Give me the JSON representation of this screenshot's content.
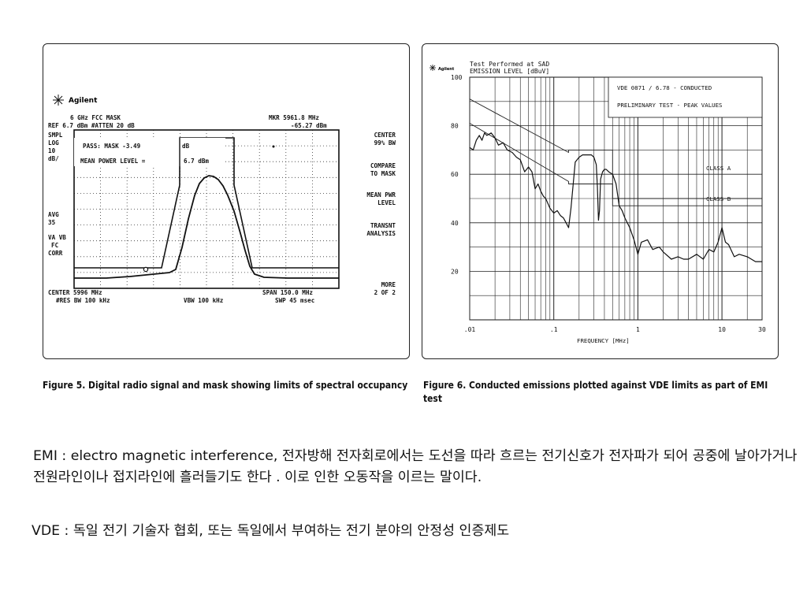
{
  "figure5": {
    "brand": "Agilent",
    "header_left_1": "6 GHz FCC MASK",
    "header_left_2": "REF 6.7 dBm   #ATTEN 20 dB",
    "header_right_1": "MKR 5961.8 MHz",
    "header_right_2": "-65.27 dBm",
    "side_labels": [
      "SMPL",
      "LOG",
      "10",
      "dB/"
    ],
    "avg_labels": [
      "AVG",
      "35"
    ],
    "corr_labels": [
      "VA VB",
      "FC",
      "CORR"
    ],
    "pass_text": "PASS: MASK -3.49",
    "pass_unit": "dB",
    "mean_text": "MEAN POWER LEVEL =",
    "mean_value": "6.7 dBm",
    "bottom_left_1": "CENTER 5996 MHz",
    "bottom_left_2": "#RES BW 100 kHz",
    "bottom_mid": "VBW 100 kHz",
    "bottom_right_1": "SPAN 150.0 MHz",
    "bottom_right_2": "SWP 45 msec",
    "softkeys": [
      [
        "CENTER",
        "99% BW"
      ],
      [
        "COMPARE",
        "TO MASK"
      ],
      [
        "MEAN PWR",
        "LEVEL"
      ],
      [
        "TRANSNT",
        "ANALYSIS"
      ],
      [
        "MORE",
        "2 OF 2"
      ]
    ]
  },
  "figure6": {
    "brand": "Agilent",
    "title_1": "Test Performed at SAD",
    "title_2": "EMISSION LEVEL [dBuV]",
    "legend_1": "VDE 0871 / 6.78 - CONDUCTED",
    "legend_2": "PRELIMINARY TEST - PEAK VALUES",
    "class_a": "CLASS A",
    "class_b": "CLASS B",
    "xlabel": "FREQUENCY [MHz]"
  },
  "chart_data": {
    "type": "line",
    "title": "Test Performed at SAD",
    "ylabel": "EMISSION LEVEL [dBuV]",
    "xlabel": "FREQUENCY [MHz]",
    "xscale": "log",
    "xlim": [
      0.01,
      30
    ],
    "ylim": [
      0,
      100
    ],
    "xticks": [
      0.01,
      0.1,
      1,
      10,
      30
    ],
    "xtick_labels": [
      ".01",
      ".1",
      "1",
      "10",
      "30"
    ],
    "yticks": [
      20,
      40,
      60,
      80,
      100
    ],
    "ytick_labels": [
      "20",
      "40",
      "60",
      "80",
      "100"
    ],
    "grid": true,
    "series": [
      {
        "name": "CLASS A",
        "color": "#222222",
        "x": [
          0.01,
          0.15,
          0.15,
          0.5,
          0.5,
          30
        ],
        "y": [
          91,
          69,
          70,
          70,
          50,
          50
        ]
      },
      {
        "name": "CLASS B",
        "color": "#222222",
        "x": [
          0.01,
          0.15,
          0.15,
          0.5,
          0.5,
          30
        ],
        "y": [
          81,
          57,
          56,
          56,
          47,
          47
        ]
      },
      {
        "name": "",
        "color": "#111111",
        "x": [
          0.01,
          0.011,
          0.012,
          0.013,
          0.014,
          0.015,
          0.016,
          0.018,
          0.02,
          0.022,
          0.025,
          0.028,
          0.032,
          0.036,
          0.04,
          0.045,
          0.05,
          0.055,
          0.06,
          0.065,
          0.07,
          0.075,
          0.08,
          0.085,
          0.09,
          0.1,
          0.11,
          0.12,
          0.13,
          0.14,
          0.15,
          0.16,
          0.18,
          0.2,
          0.22,
          0.25,
          0.28,
          0.3,
          0.32,
          0.33,
          0.34,
          0.35,
          0.36,
          0.38,
          0.4,
          0.42,
          0.45,
          0.5,
          0.55,
          0.6,
          0.65,
          0.7,
          0.8,
          0.9,
          1.0,
          1.1,
          1.3,
          1.5,
          1.8,
          2.0,
          2.5,
          3.0,
          3.5,
          4.0,
          5.0,
          6.0,
          7.0,
          8.0,
          9.0,
          10.0,
          11.0,
          12.0,
          14.0,
          16.0,
          20.0,
          25.0,
          30.0
        ],
        "y": [
          71,
          70,
          74,
          76,
          74,
          77,
          76,
          77,
          75,
          72,
          73,
          70,
          69,
          67,
          66,
          61,
          63,
          61,
          54,
          56,
          53,
          51,
          50,
          48,
          46,
          44,
          45,
          43,
          42,
          40,
          38,
          46,
          65,
          67,
          68,
          68,
          68,
          67,
          64,
          55,
          41,
          45,
          58,
          61,
          62,
          62,
          61,
          60,
          56,
          47,
          45,
          42,
          38,
          33,
          27,
          32,
          33,
          29,
          30,
          28,
          25,
          26,
          25,
          25,
          27,
          25,
          29,
          28,
          32,
          38,
          32,
          31,
          26,
          27,
          26,
          24,
          24
        ]
      }
    ]
  },
  "captions": {
    "fig5": "Figure 5. Digital radio signal and mask showing limits of spectral occupancy",
    "fig6": "Figure 6. Conducted emissions plotted against VDE limits as part of EMI test"
  },
  "text": {
    "emi": "EMI : electro magnetic interference, 전자방해 전자회로에서는 도선을 따라 흐르는 전기신호가 전자파가 되어 공중에 날아가거나 전원라인이나 접지라인에 흘러들기도 한다 . 이로 인한 오동작을 이르는 말이다.",
    "vde": "VDE : 독일 전기 기술자 협회, 또는 독일에서 부여하는 전기 분야의 안정성 인증제도"
  }
}
